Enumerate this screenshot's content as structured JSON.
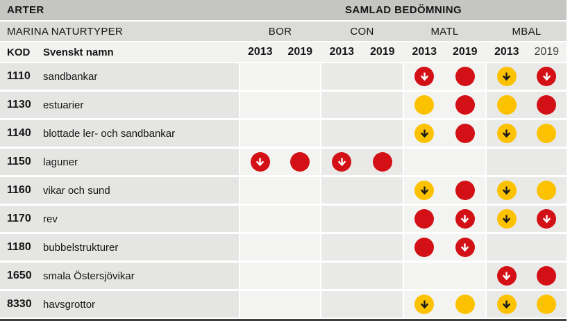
{
  "header": {
    "title_left": "ARTER",
    "title_right": "SAMLAD BEDÖMNING",
    "subtitle_left": "MARINA NATURTYPER",
    "code_label": "KOD",
    "name_label": "Svenskt namn"
  },
  "status_colors": {
    "red": "#d21016",
    "yellow": "#fcc200",
    "arrow_on_red": "#ffffff",
    "arrow_on_yellow": "#1a1a1a"
  },
  "chart_data": {
    "type": "table",
    "title": "ARTER — SAMLAD BEDÖMNING — MARINA NATURTYPER",
    "column_groups": [
      "BOR",
      "CON",
      "MATL",
      "MBAL"
    ],
    "years": [
      "2013",
      "2019"
    ],
    "cell_states": [
      "red",
      "red-down",
      "yellow",
      "yellow-down",
      null
    ],
    "rows": [
      {
        "code": "1110",
        "name": "sandbankar",
        "cells": [
          null,
          null,
          null,
          null,
          "red-down",
          "red",
          "yellow-down",
          "red-down"
        ]
      },
      {
        "code": "1130",
        "name": "estuarier",
        "cells": [
          null,
          null,
          null,
          null,
          "yellow",
          "red",
          "yellow",
          "red"
        ]
      },
      {
        "code": "1140",
        "name": "blottade ler- och sandbankar",
        "cells": [
          null,
          null,
          null,
          null,
          "yellow-down",
          "red",
          "yellow-down",
          "yellow"
        ]
      },
      {
        "code": "1150",
        "name": "laguner",
        "cells": [
          "red-down",
          "red",
          "red-down",
          "red",
          null,
          null,
          null,
          null
        ]
      },
      {
        "code": "1160",
        "name": "vikar och sund",
        "cells": [
          null,
          null,
          null,
          null,
          "yellow-down",
          "red",
          "yellow-down",
          "yellow"
        ]
      },
      {
        "code": "1170",
        "name": "rev",
        "cells": [
          null,
          null,
          null,
          null,
          "red",
          "red-down",
          "yellow-down",
          "red-down"
        ]
      },
      {
        "code": "1180",
        "name": "bubbelstrukturer",
        "cells": [
          null,
          null,
          null,
          null,
          "red",
          "red-down",
          null,
          null
        ]
      },
      {
        "code": "1650",
        "name": "smala Östersjövikar",
        "cells": [
          null,
          null,
          null,
          null,
          null,
          null,
          "red-down",
          "red"
        ]
      },
      {
        "code": "8330",
        "name": "havsgrottor",
        "cells": [
          null,
          null,
          null,
          null,
          "yellow-down",
          "yellow",
          "yellow-down",
          "yellow"
        ]
      }
    ]
  }
}
